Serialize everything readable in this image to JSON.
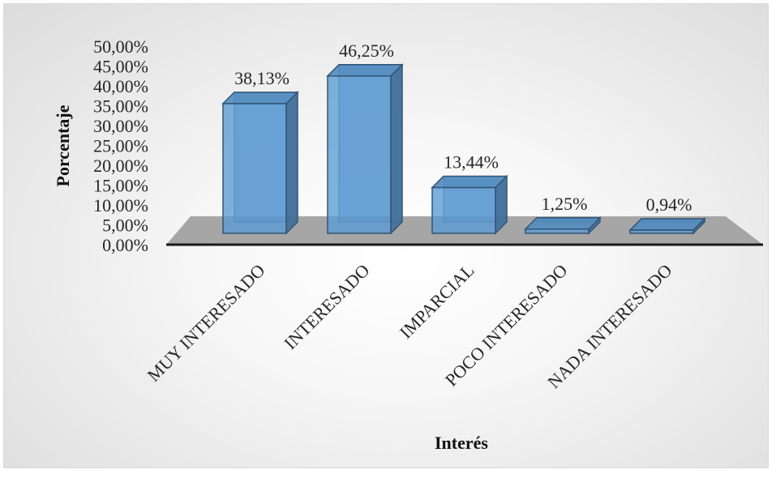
{
  "chart_data": {
    "type": "bar",
    "categories": [
      "MUY INTERESADO",
      "INTERESADO",
      "IMPARCIAL",
      "POCO INTERESADO",
      "NADA INTERESADO"
    ],
    "values": [
      38.13,
      46.25,
      13.44,
      1.25,
      0.94
    ],
    "data_labels": [
      "38,13%",
      "46,25%",
      "13,44%",
      "1,25%",
      "0,94%"
    ],
    "y_ticks": [
      "0,00%",
      "5,00%",
      "10,00%",
      "15,00%",
      "20,00%",
      "25,00%",
      "30,00%",
      "35,00%",
      "40,00%",
      "45,00%",
      "50,00%"
    ],
    "ylim": [
      0,
      50
    ],
    "title": "",
    "xlabel": "Interés",
    "ylabel": "Porcentaje",
    "bar_color": "#5b9bd5",
    "floor_color": "#a6a6a6",
    "grid": false,
    "legend": "none",
    "style": "3d-column"
  }
}
